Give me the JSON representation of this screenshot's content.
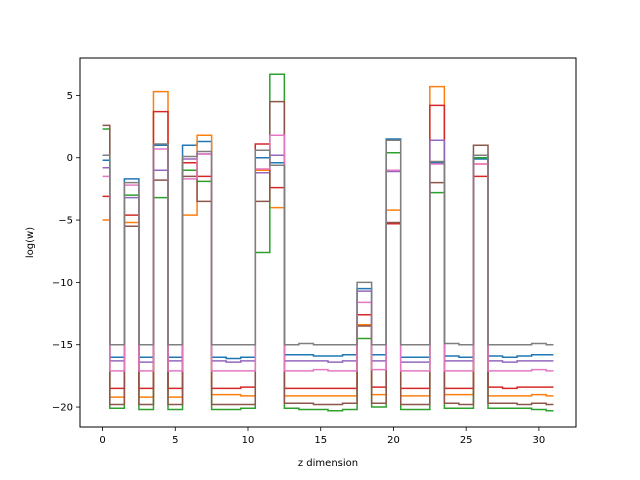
{
  "chart_data": {
    "type": "line",
    "step": "mid",
    "xlabel": "z dimension",
    "ylabel": "log(w)",
    "xlim": [
      -1.55,
      32.55
    ],
    "ylim": [
      -21.6,
      8.0
    ],
    "xticks": [
      0,
      5,
      10,
      15,
      20,
      25,
      30
    ],
    "yticks": [
      5,
      0,
      -5,
      -10,
      -15,
      -20
    ],
    "grid": false,
    "x": [
      0,
      1,
      2,
      3,
      4,
      5,
      6,
      7,
      8,
      9,
      10,
      11,
      12,
      13,
      14,
      15,
      16,
      17,
      18,
      19,
      20,
      21,
      22,
      23,
      24,
      25,
      26,
      27,
      28,
      29,
      30,
      31
    ],
    "series": [
      {
        "color": "#1f77b4",
        "values": [
          -0.2,
          -16.0,
          -1.7,
          -16.0,
          1.0,
          -16.0,
          1.0,
          1.3,
          -16.0,
          -16.1,
          -16.0,
          0.0,
          -0.4,
          -15.8,
          -15.8,
          -15.9,
          -15.9,
          -15.8,
          -10.5,
          -15.8,
          1.5,
          -16.0,
          -16.0,
          -0.4,
          -15.9,
          -16.0,
          -0.1,
          -15.9,
          -16.0,
          -15.9,
          -15.8,
          -15.8
        ]
      },
      {
        "color": "#ff7f0e",
        "values": [
          -5.0,
          -19.2,
          -5.2,
          -19.2,
          5.3,
          -19.2,
          -4.6,
          1.8,
          -19.0,
          -19.0,
          -19.1,
          -1.0,
          -4.0,
          -19.1,
          -19.1,
          -19.1,
          -19.1,
          -19.1,
          -13.4,
          -19.0,
          -4.2,
          -19.1,
          -19.1,
          5.7,
          -19.0,
          -19.0,
          -0.5,
          -19.1,
          -19.1,
          -19.1,
          -19.0,
          -19.1
        ]
      },
      {
        "color": "#2ca02c",
        "values": [
          2.3,
          -20.1,
          -3.0,
          -20.2,
          -3.2,
          -20.2,
          -1.0,
          -1.9,
          -20.2,
          -20.2,
          -20.1,
          -7.6,
          6.7,
          -20.1,
          -20.2,
          -20.2,
          -20.3,
          -20.2,
          -14.5,
          -20.0,
          0.4,
          -20.2,
          -20.2,
          -2.8,
          -20.1,
          -20.1,
          0.0,
          -20.1,
          -20.1,
          -20.1,
          -20.2,
          -20.3
        ]
      },
      {
        "color": "#d62728",
        "values": [
          -3.1,
          -18.5,
          -4.6,
          -18.5,
          3.7,
          -18.5,
          -0.4,
          -1.5,
          -18.5,
          -18.5,
          -18.4,
          1.1,
          -2.4,
          -18.5,
          -18.5,
          -18.5,
          -18.5,
          -18.5,
          -12.6,
          -18.4,
          -5.3,
          -18.5,
          -18.5,
          4.2,
          -18.5,
          -18.5,
          -1.5,
          -18.4,
          -18.5,
          -18.4,
          -18.4,
          -18.4
        ]
      },
      {
        "color": "#9467bd",
        "values": [
          -0.8,
          -16.3,
          -3.2,
          -16.4,
          -1.0,
          -16.3,
          -0.1,
          0.3,
          -16.3,
          -16.4,
          -16.3,
          -1.2,
          0.2,
          -16.3,
          -16.3,
          -16.3,
          -16.4,
          -16.3,
          -10.7,
          -16.3,
          -1.1,
          -16.4,
          -16.4,
          1.4,
          -16.3,
          -16.3,
          0.2,
          -16.3,
          -16.4,
          -16.3,
          -16.3,
          -16.3
        ]
      },
      {
        "color": "#8c564b",
        "values": [
          2.6,
          -19.8,
          -5.5,
          -19.8,
          -1.8,
          -19.8,
          -1.5,
          -3.5,
          -19.8,
          -19.8,
          -19.8,
          -3.5,
          4.5,
          -19.7,
          -19.7,
          -19.8,
          -19.8,
          -19.7,
          -13.5,
          -19.7,
          -5.2,
          -19.8,
          -19.8,
          -2.0,
          -19.7,
          -19.8,
          1.0,
          -19.7,
          -19.7,
          -19.8,
          -19.7,
          -19.8
        ]
      },
      {
        "color": "#e377c2",
        "values": [
          -1.5,
          -17.1,
          -2.2,
          -17.1,
          0.7,
          -17.1,
          -1.7,
          0.3,
          -17.1,
          -17.1,
          -17.1,
          -0.9,
          1.8,
          -17.1,
          -17.1,
          -17.0,
          -17.1,
          -17.1,
          -11.6,
          -17.0,
          -1.0,
          -17.1,
          -17.1,
          -0.5,
          -17.1,
          -17.1,
          -0.5,
          -17.1,
          -17.1,
          -17.1,
          -17.0,
          -17.1
        ]
      },
      {
        "color": "#7f7f7f",
        "values": [
          0.2,
          -15.0,
          -2.0,
          -15.0,
          1.1,
          -15.0,
          0.1,
          0.5,
          -15.0,
          -15.0,
          -15.0,
          0.6,
          -0.6,
          -15.0,
          -14.9,
          -15.0,
          -15.0,
          -15.0,
          -10.0,
          -15.0,
          1.4,
          -15.0,
          -15.0,
          -0.3,
          -14.9,
          -15.0,
          0.2,
          -15.0,
          -15.0,
          -15.0,
          -14.9,
          -15.0
        ]
      }
    ]
  }
}
